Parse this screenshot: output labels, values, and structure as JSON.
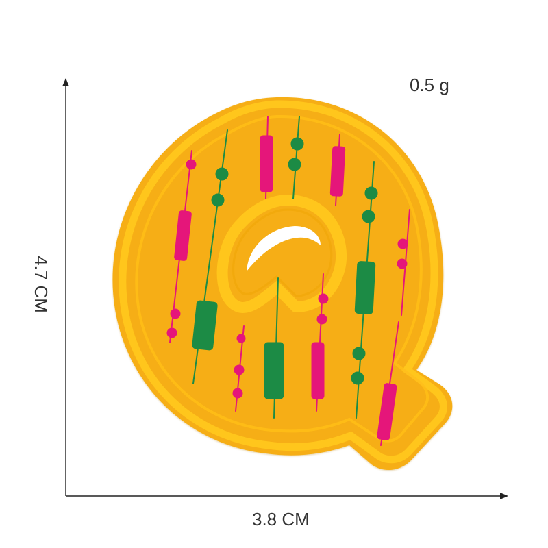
{
  "measurements": {
    "weight": "0.5 g",
    "width": "3.8 CM",
    "height": "4.7 CM"
  },
  "product": {
    "letter": "Q"
  },
  "colors": {
    "felt": "#F6AE12",
    "border": "#FFC61E",
    "pink": "#E5177A",
    "green": "#1B8B45",
    "axis": "#222222",
    "text": "#333333"
  },
  "icons": {
    "x_arrow": "arrow-right-icon",
    "y_arrow": "arrow-up-icon"
  }
}
